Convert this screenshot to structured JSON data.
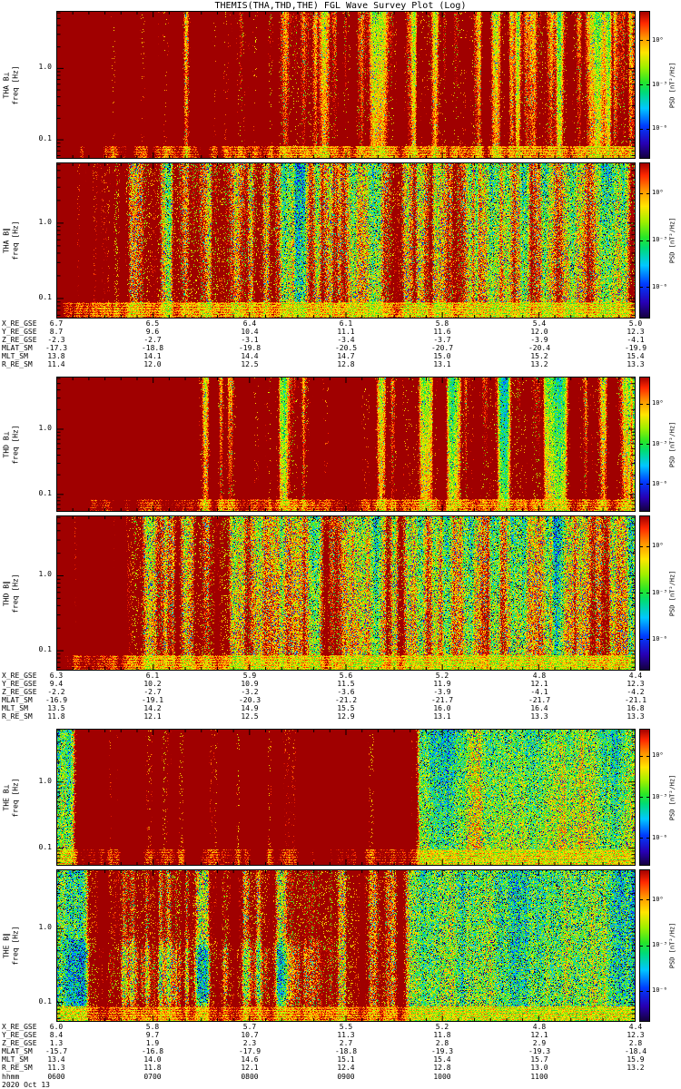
{
  "title": "THEMIS(THA,THD,THE) FGL Wave Survey Plot (Log)",
  "date_label": "2020 Oct 13",
  "time_axis": {
    "label": "hhmm",
    "ticks": [
      "0600",
      "0700",
      "0800",
      "0900",
      "1000",
      "1100"
    ]
  },
  "yaxis": {
    "ticks": [
      "1.0",
      "0.1"
    ]
  },
  "colorbar": {
    "label": "PSD [nT²/Hz]",
    "ticks": [
      "10⁰",
      "10⁻³",
      "10⁻⁶"
    ],
    "top_color": "#a00000",
    "bottom_color": "#140040"
  },
  "chart_data": {
    "type": "heatmap",
    "subtype": "dynamic power spectrogram (log frequency, rainbow colormap)",
    "title": "THEMIS(THA,THD,THE) FGL Wave Survey Plot (Log)",
    "x_label": "hhmm (2020 Oct 13)",
    "x_ticks": [
      "0600",
      "0700",
      "0800",
      "0900",
      "1000",
      "1100"
    ],
    "y_label": "freq [Hz]",
    "y_scale": "log",
    "y_range": [
      0.055,
      6.3
    ],
    "y_tick_labels": [
      "1.0",
      "0.1"
    ],
    "z_label": "PSD [nT²/Hz]",
    "z_tick_labels": [
      "10⁰",
      "10⁻³",
      "10⁻⁶"
    ],
    "legend_position": "right colorbar per panel",
    "grid": false,
    "panels": [
      {
        "id": "tha-bperp",
        "label_line1": "THA B⊥",
        "label_line2": "freq [Hz]",
        "description": "High PSD (orange/red vertical bursts) before ~0830, green with blue speckle at high freq after, persistent yellow band at lowest frequencies",
        "texture": {
          "seed": 11,
          "top": 0.52,
          "bottom": 0.72,
          "leftFrac": 0.3,
          "leftBoost": 0.15,
          "streakDensity": 0.55,
          "streakAmp": 0.5,
          "streakBias": 2.4,
          "speckle": 0.16,
          "dotProb": 0.04,
          "dotDv": -0.33,
          "bandFrac": 0.085,
          "bandVal": 0.7
        }
      },
      {
        "id": "tha-bpar",
        "label_line1": "THA B∥",
        "label_line2": "freq [Hz]",
        "description": "Green background, dense blue speckle at high freq, yellow-green vertical streaks before ~0830, yellow band at lowest frequencies",
        "texture": {
          "seed": 22,
          "top": 0.45,
          "bottom": 0.62,
          "leftFrac": 0.3,
          "leftBoost": 0.07,
          "streakDensity": 0.4,
          "streakAmp": 0.3,
          "streakBias": 2.2,
          "speckle": 0.26,
          "dotProb": 0.1,
          "dotDv": -0.3,
          "bandFrac": 0.1,
          "bandVal": 0.66
        }
      },
      {
        "id": "thd-bperp",
        "label_line1": "THD B⊥",
        "label_line2": "freq [Hz]",
        "description": "Strong orange/red bursts before ~0830, yellow mid/low frequencies, green with speckle top-right, yellow low-frequency band",
        "texture": {
          "seed": 33,
          "top": 0.52,
          "bottom": 0.73,
          "leftFrac": 0.32,
          "leftBoost": 0.16,
          "streakDensity": 0.55,
          "streakAmp": 0.52,
          "streakBias": 2.2,
          "speckle": 0.16,
          "dotProb": 0.04,
          "dotDv": -0.33,
          "bandFrac": 0.09,
          "bandVal": 0.7
        }
      },
      {
        "id": "thd-bpar",
        "label_line1": "THD B∥",
        "label_line2": "freq [Hz]",
        "description": "Green with heavy blue speckle, yellow-green streaks in first half, yellow low-frequency band",
        "texture": {
          "seed": 44,
          "top": 0.45,
          "bottom": 0.62,
          "leftFrac": 0.3,
          "leftBoost": 0.07,
          "streakDensity": 0.42,
          "streakAmp": 0.3,
          "streakBias": 2.0,
          "speckle": 0.26,
          "dotProb": 0.1,
          "dotDv": -0.3,
          "bandFrac": 0.1,
          "bandVal": 0.66
        }
      },
      {
        "id": "the-bperp",
        "label_line1": "THE B⊥",
        "label_line2": "freq [Hz]",
        "description": "Green speckled background, intense red/orange vertical bursts between ~0630 and ~1000, yellow low-frequency band",
        "texture": {
          "seed": 55,
          "top": 0.47,
          "bottom": 0.6,
          "leftFrac": 0.12,
          "leftBoost": 0.04,
          "streakDensity": 0.5,
          "streakAmp": 0.55,
          "streakBias": 1.4,
          "streakWindow": [
            0.02,
            0.62
          ],
          "speckle": 0.24,
          "dotProb": 0.08,
          "dotDv": -0.3,
          "bandFrac": 0.12,
          "bandVal": 0.7
        }
      },
      {
        "id": "the-bpar",
        "label_line1": "THE B∥",
        "label_line2": "freq [Hz]",
        "description": "Cyan/blue low-PSD region at low frequency early in interval, green elsewhere with blue speckle, yellow low-frequency band",
        "texture": {
          "seed": 66,
          "top": 0.47,
          "bottom": 0.52,
          "leftFrac": 0.1,
          "leftBoost": 0.0,
          "streakDensity": 0.4,
          "streakAmp": 0.28,
          "streakBias": 1.5,
          "streakWindow": [
            0.05,
            0.6
          ],
          "speckle": 0.26,
          "dotProb": 0.1,
          "dotDv": -0.28,
          "bandFrac": 0.1,
          "bandVal": 0.68,
          "blob": {
            "x0": 0.0,
            "x1": 0.5,
            "y0": 0.45,
            "y1": 0.92,
            "dv": -0.3
          }
        }
      }
    ]
  },
  "ephemeris": [
    {
      "probe": "THA",
      "rows": [
        {
          "label": "X_RE_GSE",
          "values": [
            "6.7",
            "6.5",
            "6.4",
            "6.1",
            "5.8",
            "5.4",
            "5.0"
          ]
        },
        {
          "label": "Y_RE_GSE",
          "values": [
            "8.7",
            "9.6",
            "10.4",
            "11.1",
            "11.6",
            "12.0",
            "12.3"
          ]
        },
        {
          "label": "Z_RE_GSE",
          "values": [
            "-2.3",
            "-2.7",
            "-3.1",
            "-3.4",
            "-3.7",
            "-3.9",
            "-4.1"
          ]
        },
        {
          "label": "MLAT_SM",
          "values": [
            "-17.3",
            "-18.8",
            "-19.8",
            "-20.5",
            "-20.7",
            "-20.4",
            "-19.9"
          ]
        },
        {
          "label": "MLT_SM",
          "values": [
            "13.8",
            "14.1",
            "14.4",
            "14.7",
            "15.0",
            "15.2",
            "15.4"
          ]
        },
        {
          "label": "R_RE_SM",
          "values": [
            "11.4",
            "12.0",
            "12.5",
            "12.8",
            "13.1",
            "13.2",
            "13.3"
          ]
        }
      ]
    },
    {
      "probe": "THD",
      "rows": [
        {
          "label": "X_RE_GSE",
          "values": [
            "6.3",
            "6.1",
            "5.9",
            "5.6",
            "5.2",
            "4.8",
            "4.4"
          ]
        },
        {
          "label": "Y_RE_GSE",
          "values": [
            "9.4",
            "10.2",
            "10.9",
            "11.5",
            "11.9",
            "12.1",
            "12.3"
          ]
        },
        {
          "label": "Z_RE_GSE",
          "values": [
            "-2.2",
            "-2.7",
            "-3.2",
            "-3.6",
            "-3.9",
            "-4.1",
            "-4.2"
          ]
        },
        {
          "label": "MLAT_SM",
          "values": [
            "-16.9",
            "-19.1",
            "-20.3",
            "-21.2",
            "-21.7",
            "-21.7",
            "-21.1"
          ]
        },
        {
          "label": "MLT_SM",
          "values": [
            "13.5",
            "14.2",
            "14.9",
            "15.5",
            "16.0",
            "16.4",
            "16.8"
          ]
        },
        {
          "label": "R_RE_SM",
          "values": [
            "11.8",
            "12.1",
            "12.5",
            "12.9",
            "13.1",
            "13.3",
            "13.3"
          ]
        }
      ]
    },
    {
      "probe": "THE",
      "rows": [
        {
          "label": "X_RE_GSE",
          "values": [
            "6.0",
            "5.8",
            "5.7",
            "5.5",
            "5.2",
            "4.8",
            "4.4"
          ]
        },
        {
          "label": "Y_RE_GSE",
          "values": [
            "8.4",
            "9.7",
            "10.7",
            "11.3",
            "11.8",
            "12.1",
            "12.3"
          ]
        },
        {
          "label": "Z_RE_GSE",
          "values": [
            "1.3",
            "1.9",
            "2.3",
            "2.7",
            "2.8",
            "2.9",
            "2.8"
          ]
        },
        {
          "label": "MLAT_SM",
          "values": [
            "-15.7",
            "-16.8",
            "-17.9",
            "-18.8",
            "-19.3",
            "-19.3",
            "-18.4"
          ]
        },
        {
          "label": "MLT_SM",
          "values": [
            "13.4",
            "14.0",
            "14.6",
            "15.1",
            "15.4",
            "15.7",
            "15.9"
          ]
        },
        {
          "label": "R_RE_SM",
          "values": [
            "11.3",
            "11.8",
            "12.1",
            "12.4",
            "12.8",
            "13.0",
            "13.2"
          ]
        }
      ]
    }
  ]
}
